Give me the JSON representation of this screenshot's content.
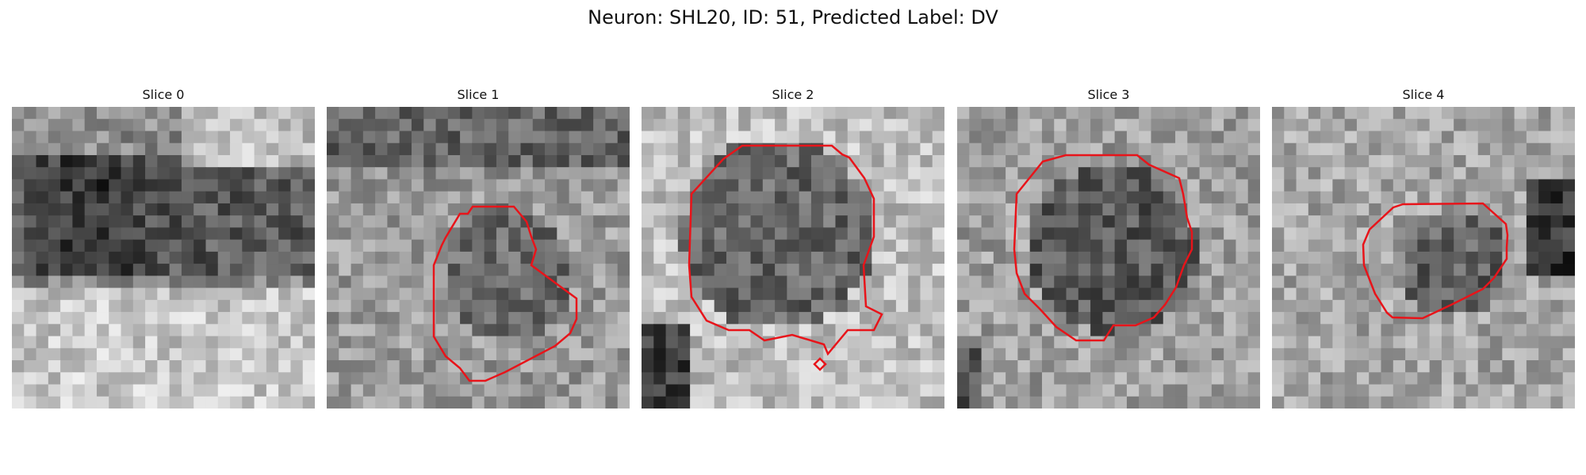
{
  "figure": {
    "title": "Neuron: SHL20, ID: 51, Predicted Label: DV"
  },
  "slices": [
    {
      "title": "Slice 0",
      "has_contour": false,
      "image_description": "noisy grayscale microscopy patch with dark horizontal band across the upper half and bright texture in the lower half"
    },
    {
      "title": "Slice 1",
      "has_contour": true,
      "contour_color": "#e8141a",
      "image_description": "grayscale patch with a roughly circular darker cell body outlined by a red contour, slightly right of center"
    },
    {
      "title": "Slice 2",
      "has_contour": true,
      "contour_color": "#e8141a",
      "image_description": "grayscale patch with a large dark cell body outlined by a red contour that has a tail toward the lower right and a small diamond mark below"
    },
    {
      "title": "Slice 3",
      "has_contour": true,
      "contour_color": "#e8141a",
      "image_description": "grayscale patch with a dark round cell body outlined by a red octagonal contour near center"
    },
    {
      "title": "Slice 4",
      "has_contour": true,
      "contour_color": "#e8141a",
      "image_description": "grayscale patch with a smaller dark cell body outlined by a red contour, right of center, dark region at far right"
    }
  ]
}
